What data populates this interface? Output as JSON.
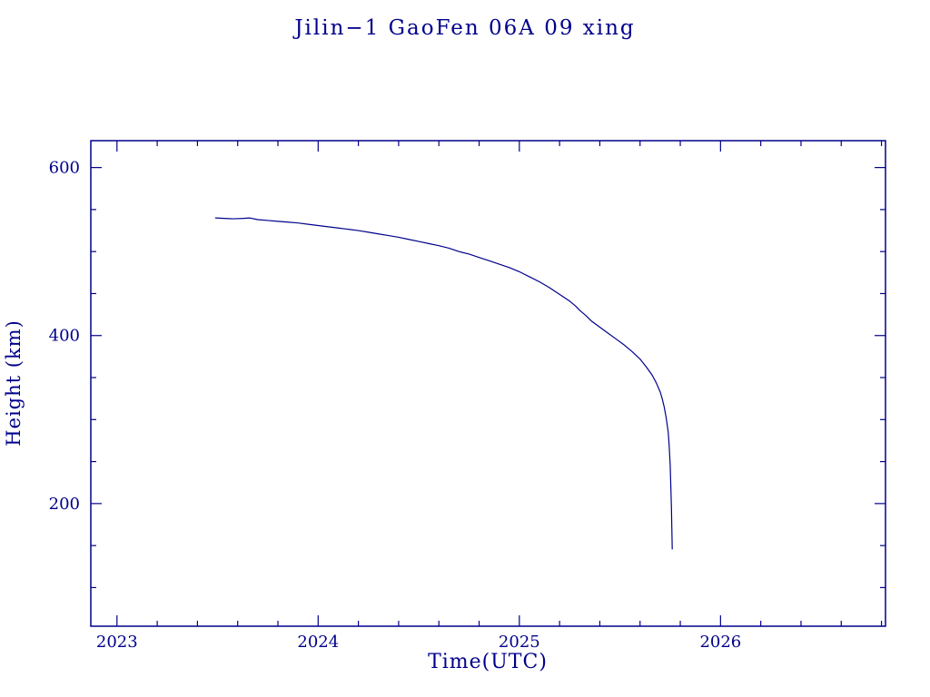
{
  "chart_data": {
    "type": "line",
    "title": "Jilin−1 GaoFen 06A 09 xing",
    "xlabel": "Time(UTC)",
    "ylabel": "Height (km)",
    "xlim": [
      2022.87,
      2026.82
    ],
    "ylim": [
      54,
      632
    ],
    "x_major_ticks": [
      2023,
      2024,
      2025,
      2026
    ],
    "x_tick_labels": [
      "2023",
      "2024",
      "2025",
      "2026"
    ],
    "x_minor_step": 0.2,
    "y_major_ticks": [
      200,
      400,
      600
    ],
    "y_tick_labels": [
      "200",
      "400",
      "600"
    ],
    "y_minor_step": 50,
    "grid": "off",
    "legend": "none",
    "colors": {
      "axis_color": "#00008B",
      "text_color": "#00008B",
      "line_color": "#00008B",
      "background": "#ffffff"
    },
    "series": [
      {
        "name": "Jilin-1 GaoFen 06A 09 xing height",
        "points": [
          [
            2023.49,
            540
          ],
          [
            2023.53,
            539.5
          ],
          [
            2023.58,
            539
          ],
          [
            2023.63,
            539.5
          ],
          [
            2023.66,
            540
          ],
          [
            2023.7,
            538
          ],
          [
            2023.75,
            537
          ],
          [
            2023.8,
            536
          ],
          [
            2023.85,
            535
          ],
          [
            2023.9,
            534
          ],
          [
            2023.95,
            532.5
          ],
          [
            2024.0,
            531
          ],
          [
            2024.05,
            529.5
          ],
          [
            2024.1,
            528
          ],
          [
            2024.15,
            526.5
          ],
          [
            2024.2,
            525
          ],
          [
            2024.25,
            523
          ],
          [
            2024.3,
            521
          ],
          [
            2024.35,
            519
          ],
          [
            2024.4,
            517
          ],
          [
            2024.45,
            514.5
          ],
          [
            2024.5,
            512
          ],
          [
            2024.55,
            509.5
          ],
          [
            2024.6,
            507
          ],
          [
            2024.65,
            504
          ],
          [
            2024.7,
            500
          ],
          [
            2024.75,
            497
          ],
          [
            2024.8,
            493
          ],
          [
            2024.85,
            489
          ],
          [
            2024.9,
            485
          ],
          [
            2024.95,
            481
          ],
          [
            2025.0,
            476
          ],
          [
            2025.05,
            470
          ],
          [
            2025.1,
            464
          ],
          [
            2025.15,
            457
          ],
          [
            2025.2,
            449
          ],
          [
            2025.25,
            441
          ],
          [
            2025.28,
            435
          ],
          [
            2025.3,
            430
          ],
          [
            2025.33,
            424
          ],
          [
            2025.36,
            417
          ],
          [
            2025.4,
            410
          ],
          [
            2025.44,
            403
          ],
          [
            2025.48,
            396
          ],
          [
            2025.52,
            389
          ],
          [
            2025.56,
            381
          ],
          [
            2025.6,
            372
          ],
          [
            2025.63,
            363
          ],
          [
            2025.66,
            353
          ],
          [
            2025.68,
            344
          ],
          [
            2025.7,
            333
          ],
          [
            2025.71,
            325
          ],
          [
            2025.72,
            315
          ],
          [
            2025.73,
            302
          ],
          [
            2025.74,
            285
          ],
          [
            2025.745,
            268
          ],
          [
            2025.75,
            245
          ],
          [
            2025.753,
            220
          ],
          [
            2025.756,
            195
          ],
          [
            2025.758,
            170
          ],
          [
            2025.76,
            146
          ]
        ]
      }
    ]
  }
}
